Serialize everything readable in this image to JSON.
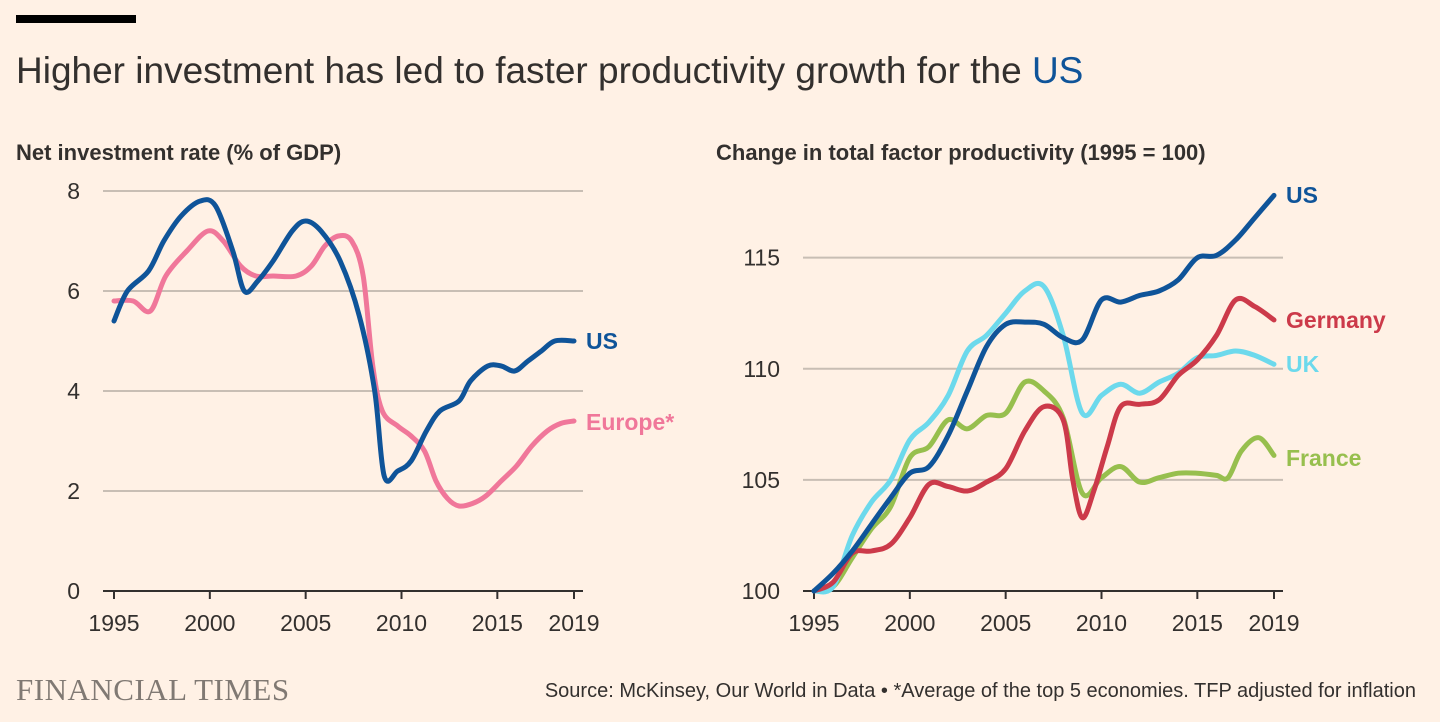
{
  "header": {
    "title_main": "Higher investment has led to faster productivity growth for the ",
    "title_highlight": "US"
  },
  "footer": {
    "brand": "FINANCIAL TIMES",
    "source": "Source: McKinsey, Our World in Data • *Average of the top 5 economies. TFP adjusted for inflation"
  },
  "colors": {
    "us": "#0f5499",
    "europe": "#f0779a",
    "germany": "#cc3a4a",
    "uk": "#6cd9ec",
    "france": "#97bf4e",
    "grid": "#c8beb4",
    "axis": "#33302e",
    "tick_text": "#33302e",
    "background": "#fff1e5"
  },
  "chart_data": [
    {
      "type": "line",
      "title": "Net investment rate (% of GDP)",
      "xlabel": "",
      "ylabel": "",
      "xlim": [
        1995,
        2019
      ],
      "ylim": [
        0,
        8
      ],
      "x_ticks": [
        1995,
        2000,
        2005,
        2010,
        2015,
        2019
      ],
      "y_ticks": [
        0,
        2,
        4,
        6,
        8
      ],
      "grid": true,
      "series": [
        {
          "name": "US",
          "color_key": "us",
          "points": [
            [
              1995,
              5.4
            ],
            [
              1995.7,
              6.0
            ],
            [
              1996.8,
              6.4
            ],
            [
              1997.6,
              7.0
            ],
            [
              1998.5,
              7.5
            ],
            [
              1999.5,
              7.8
            ],
            [
              2000.3,
              7.7
            ],
            [
              2001.2,
              6.8
            ],
            [
              2001.8,
              6.0
            ],
            [
              2002.5,
              6.2
            ],
            [
              2003.3,
              6.6
            ],
            [
              2004.3,
              7.2
            ],
            [
              2005.0,
              7.4
            ],
            [
              2005.8,
              7.2
            ],
            [
              2006.8,
              6.6
            ],
            [
              2007.8,
              5.5
            ],
            [
              2008.6,
              4.0
            ],
            [
              2009.1,
              2.3
            ],
            [
              2009.8,
              2.4
            ],
            [
              2010.5,
              2.6
            ],
            [
              2011.3,
              3.2
            ],
            [
              2012.0,
              3.6
            ],
            [
              2013.0,
              3.8
            ],
            [
              2013.6,
              4.2
            ],
            [
              2014.5,
              4.5
            ],
            [
              2015.2,
              4.5
            ],
            [
              2015.9,
              4.4
            ],
            [
              2016.6,
              4.6
            ],
            [
              2017.3,
              4.8
            ],
            [
              2018.0,
              5.0
            ],
            [
              2019.0,
              5.0
            ]
          ]
        },
        {
          "name": "Europe*",
          "color_key": "europe",
          "points": [
            [
              1995,
              5.8
            ],
            [
              1996.0,
              5.8
            ],
            [
              1996.9,
              5.6
            ],
            [
              1997.7,
              6.3
            ],
            [
              1998.8,
              6.8
            ],
            [
              1999.9,
              7.2
            ],
            [
              2000.7,
              7.0
            ],
            [
              2001.6,
              6.5
            ],
            [
              2002.4,
              6.3
            ],
            [
              2003.3,
              6.3
            ],
            [
              2004.5,
              6.3
            ],
            [
              2005.3,
              6.5
            ],
            [
              2006.0,
              6.9
            ],
            [
              2006.7,
              7.1
            ],
            [
              2007.4,
              7.0
            ],
            [
              2008.0,
              6.3
            ],
            [
              2008.5,
              4.5
            ],
            [
              2009.0,
              3.6
            ],
            [
              2009.8,
              3.3
            ],
            [
              2010.5,
              3.1
            ],
            [
              2011.2,
              2.8
            ],
            [
              2011.8,
              2.2
            ],
            [
              2012.4,
              1.85
            ],
            [
              2013.0,
              1.7
            ],
            [
              2013.7,
              1.75
            ],
            [
              2014.4,
              1.9
            ],
            [
              2015.2,
              2.2
            ],
            [
              2016.0,
              2.5
            ],
            [
              2016.8,
              2.9
            ],
            [
              2017.6,
              3.2
            ],
            [
              2018.3,
              3.35
            ],
            [
              2019.0,
              3.4
            ]
          ]
        }
      ]
    },
    {
      "type": "line",
      "title": "Change in total factor productivity (1995 = 100)",
      "xlabel": "",
      "ylabel": "",
      "xlim": [
        1995,
        2019
      ],
      "ylim": [
        100,
        118
      ],
      "x_ticks": [
        1995,
        2000,
        2005,
        2010,
        2015,
        2019
      ],
      "y_ticks": [
        100,
        105,
        110,
        115
      ],
      "grid": true,
      "series": [
        {
          "name": "US",
          "color_key": "us",
          "points": [
            [
              1995,
              100.0
            ],
            [
              1996.0,
              100.8
            ],
            [
              1997.0,
              101.8
            ],
            [
              1998.0,
              103.0
            ],
            [
              1999.0,
              104.2
            ],
            [
              2000.0,
              105.3
            ],
            [
              2001.0,
              105.6
            ],
            [
              2002.0,
              107.0
            ],
            [
              2003.0,
              109.0
            ],
            [
              2004.0,
              111.0
            ],
            [
              2005.0,
              112.0
            ],
            [
              2006.0,
              112.1
            ],
            [
              2007.0,
              112.0
            ],
            [
              2008.0,
              111.4
            ],
            [
              2009.0,
              111.3
            ],
            [
              2010.0,
              113.1
            ],
            [
              2011.0,
              113.0
            ],
            [
              2012.0,
              113.3
            ],
            [
              2013.0,
              113.5
            ],
            [
              2014.0,
              114.0
            ],
            [
              2015.0,
              115.0
            ],
            [
              2016.0,
              115.1
            ],
            [
              2017.0,
              115.8
            ],
            [
              2018.0,
              116.8
            ],
            [
              2019.0,
              117.8
            ]
          ]
        },
        {
          "name": "Germany",
          "color_key": "germany",
          "points": [
            [
              1995,
              100.0
            ],
            [
              1996.0,
              100.4
            ],
            [
              1997.0,
              101.7
            ],
            [
              1998.0,
              101.8
            ],
            [
              1999.0,
              102.1
            ],
            [
              2000.0,
              103.3
            ],
            [
              2001.0,
              104.8
            ],
            [
              2002.0,
              104.7
            ],
            [
              2003.0,
              104.5
            ],
            [
              2004.0,
              104.9
            ],
            [
              2005.0,
              105.5
            ],
            [
              2006.0,
              107.2
            ],
            [
              2007.0,
              108.3
            ],
            [
              2008.0,
              107.7
            ],
            [
              2008.5,
              105.0
            ],
            [
              2009.0,
              103.3
            ],
            [
              2009.6,
              104.5
            ],
            [
              2010.3,
              106.5
            ],
            [
              2011.0,
              108.3
            ],
            [
              2012.0,
              108.4
            ],
            [
              2013.0,
              108.6
            ],
            [
              2014.0,
              109.7
            ],
            [
              2015.0,
              110.4
            ],
            [
              2016.0,
              111.5
            ],
            [
              2017.0,
              113.1
            ],
            [
              2018.0,
              112.8
            ],
            [
              2019.0,
              112.2
            ]
          ]
        },
        {
          "name": "UK",
          "color_key": "uk",
          "points": [
            [
              1995,
              100.0
            ],
            [
              1996.0,
              100.2
            ],
            [
              1997.0,
              102.5
            ],
            [
              1998.0,
              104.0
            ],
            [
              1999.0,
              105.0
            ],
            [
              2000.0,
              106.8
            ],
            [
              2001.0,
              107.6
            ],
            [
              2002.0,
              108.8
            ],
            [
              2003.0,
              110.8
            ],
            [
              2004.0,
              111.5
            ],
            [
              2005.0,
              112.5
            ],
            [
              2006.0,
              113.5
            ],
            [
              2007.0,
              113.7
            ],
            [
              2008.0,
              111.5
            ],
            [
              2009.0,
              108.0
            ],
            [
              2010.0,
              108.8
            ],
            [
              2011.0,
              109.3
            ],
            [
              2012.0,
              108.9
            ],
            [
              2013.0,
              109.4
            ],
            [
              2014.0,
              109.8
            ],
            [
              2015.0,
              110.5
            ],
            [
              2016.0,
              110.6
            ],
            [
              2017.0,
              110.8
            ],
            [
              2018.0,
              110.6
            ],
            [
              2019.0,
              110.2
            ]
          ]
        },
        {
          "name": "France",
          "color_key": "france",
          "points": [
            [
              1995,
              100.0
            ],
            [
              1996.0,
              100.2
            ],
            [
              1997.0,
              101.5
            ],
            [
              1998.0,
              102.8
            ],
            [
              1999.0,
              103.8
            ],
            [
              2000.0,
              106.0
            ],
            [
              2001.0,
              106.5
            ],
            [
              2002.0,
              107.7
            ],
            [
              2003.0,
              107.3
            ],
            [
              2004.0,
              107.9
            ],
            [
              2005.0,
              108.0
            ],
            [
              2006.0,
              109.4
            ],
            [
              2007.0,
              109.0
            ],
            [
              2008.0,
              107.8
            ],
            [
              2009.0,
              104.4
            ],
            [
              2010.0,
              105.1
            ],
            [
              2011.0,
              105.6
            ],
            [
              2012.0,
              104.9
            ],
            [
              2013.0,
              105.1
            ],
            [
              2014.0,
              105.3
            ],
            [
              2015.0,
              105.3
            ],
            [
              2016.0,
              105.2
            ],
            [
              2016.6,
              105.1
            ],
            [
              2017.3,
              106.3
            ],
            [
              2018.2,
              106.9
            ],
            [
              2019.0,
              106.1
            ]
          ]
        }
      ]
    }
  ]
}
